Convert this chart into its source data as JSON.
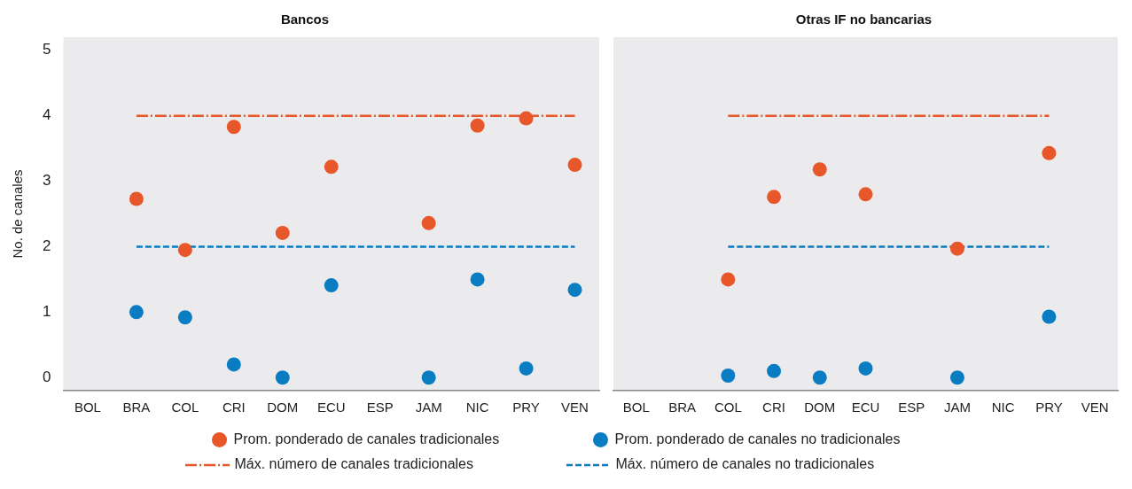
{
  "chart_data": [
    {
      "type": "scatter",
      "title": "Bancos",
      "ylabel": "No. de canales",
      "categories": [
        "BOL",
        "BRA",
        "COL",
        "CRI",
        "DOM",
        "ECU",
        "ESP",
        "JAM",
        "NIC",
        "PRY",
        "VEN"
      ],
      "ylim": [
        -0.2,
        5.2
      ],
      "yticks": [
        0,
        1,
        2,
        3,
        4,
        5
      ],
      "grid": false,
      "legend": "bottom",
      "marker": "circle",
      "series": [
        {
          "name": "Prom. ponderado de canales tradicionales",
          "color": "#e8572a",
          "values": [
            null,
            2.73,
            1.95,
            3.83,
            2.21,
            3.22,
            null,
            2.36,
            3.85,
            3.96,
            3.25
          ]
        },
        {
          "name": "Prom. ponderado de canales no tradicionales",
          "color": "#0a7cc2",
          "values": [
            null,
            1.0,
            0.92,
            0.2,
            0.0,
            1.41,
            null,
            0.0,
            1.5,
            0.14,
            1.34
          ]
        },
        {
          "name": "Máx. número de canales tradicionales",
          "type": "line",
          "color": "#e8572a",
          "line_style": "dashdot",
          "marker": "none",
          "values": [
            null,
            4,
            4,
            4,
            4,
            4,
            4,
            4,
            4,
            4,
            4
          ]
        },
        {
          "name": "Máx. número de canales no tradicionales",
          "type": "line",
          "color": "#0a7cc2",
          "line_style": "dashed",
          "marker": "none",
          "values": [
            null,
            2,
            2,
            2,
            2,
            2,
            2,
            2,
            2,
            2,
            2
          ]
        }
      ]
    },
    {
      "type": "scatter",
      "title": "Otras IF no bancarias",
      "categories": [
        "BOL",
        "BRA",
        "COL",
        "CRI",
        "DOM",
        "ECU",
        "ESP",
        "JAM",
        "NIC",
        "PRY",
        "VEN"
      ],
      "ylim": [
        -0.2,
        5.2
      ],
      "yticks": [
        0,
        1,
        2,
        3,
        4,
        5
      ],
      "tick_labels": "x",
      "grid": false,
      "legend": "bottom",
      "marker": "circle",
      "series": [
        {
          "name": "Prom. ponderado de canales tradicionales",
          "color": "#e8572a",
          "values": [
            null,
            null,
            1.5,
            2.76,
            3.18,
            2.8,
            null,
            1.97,
            null,
            3.43,
            null
          ]
        },
        {
          "name": "Prom. ponderado de canales no tradicionales",
          "color": "#0a7cc2",
          "values": [
            null,
            null,
            0.03,
            0.1,
            0.0,
            0.14,
            null,
            0.0,
            null,
            0.93,
            null
          ]
        },
        {
          "name": "Máx. número de canales tradicionales",
          "type": "line",
          "color": "#e8572a",
          "line_style": "dashdot",
          "marker": "none",
          "values": [
            null,
            null,
            4,
            4,
            4,
            4,
            4,
            4,
            4,
            4,
            null
          ]
        },
        {
          "name": "Máx. número de canales no tradicionales",
          "type": "line",
          "color": "#0a7cc2",
          "line_style": "dashed",
          "marker": "none",
          "values": [
            null,
            null,
            2,
            2,
            2,
            2,
            2,
            2,
            2,
            2,
            null
          ]
        }
      ]
    }
  ]
}
